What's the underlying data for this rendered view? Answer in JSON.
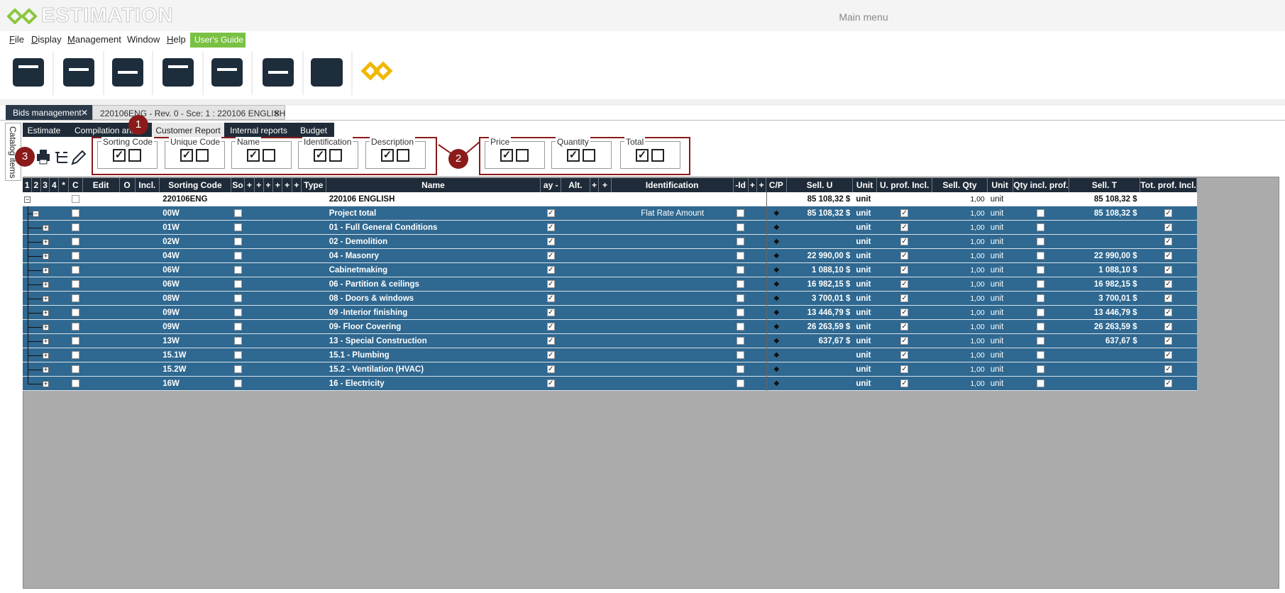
{
  "header": {
    "logo": "ESTIMATION",
    "title": "Main menu"
  },
  "menu": [
    "File",
    "Display",
    "Management",
    "Window",
    "Help",
    "User's Guide"
  ],
  "tabs": [
    "Bids management",
    "220106ENG - Rev. 0 - Sce: 1 : 220106 ENGLISH"
  ],
  "side_tab": "Catalog items",
  "report_tabs": [
    "Estimate",
    "Compilation anal",
    "Customer Report",
    "Internal reports",
    "Budget"
  ],
  "callouts": [
    "1",
    "2",
    "3"
  ],
  "option_groups": [
    "Sorting Code",
    "Unique Code",
    "Name",
    "Identification",
    "Description",
    "Price",
    "Quantity",
    "Total"
  ],
  "table": {
    "columns": [
      "1",
      "2",
      "3",
      "4",
      "*",
      "C",
      "Edit",
      "O",
      "Incl.",
      "Sorting Code",
      "So",
      "+",
      "+",
      "+",
      "+",
      "+",
      "+",
      "Type",
      "Name",
      "ay -",
      "Alt.",
      "+",
      "+",
      "Identification",
      "-Id",
      "+",
      "+",
      "C/P",
      "Sell. U",
      "Unit",
      "U. prof. Incl.",
      "Sell. Qty",
      "Unit",
      "Qty incl. prof.",
      "Sell. T",
      "Tot. prof. Incl."
    ],
    "rows": [
      {
        "code": "220106ENG",
        "name": "220106 ENGLISH",
        "sell_u": "85 108,32 $",
        "unit": "unit",
        "sell_qty": "1,00",
        "qty_unit": "unit",
        "sell_t": "85 108,32 $"
      },
      {
        "code": "00W",
        "name": "Project total",
        "identification": "Flat Rate Amount",
        "sell_u": "85 108,32 $",
        "unit": "unit",
        "sell_qty": "1,00",
        "qty_unit": "unit",
        "sell_t": "85 108,32 $"
      },
      {
        "code": "01W",
        "name": "01 - Full General Conditions",
        "unit": "unit",
        "sell_qty": "1,00",
        "qty_unit": "unit"
      },
      {
        "code": "02W",
        "name": "02 - Demolition",
        "unit": "unit",
        "sell_qty": "1,00",
        "qty_unit": "unit"
      },
      {
        "code": "04W",
        "name": "04 - Masonry",
        "sell_u": "22 990,00 $",
        "unit": "unit",
        "sell_qty": "1,00",
        "qty_unit": "unit",
        "sell_t": "22 990,00 $"
      },
      {
        "code": "06W",
        "name": "Cabinetmaking",
        "sell_u": "1 088,10 $",
        "unit": "unit",
        "sell_qty": "1,00",
        "qty_unit": "unit",
        "sell_t": "1 088,10 $"
      },
      {
        "code": "06W",
        "name": "06 - Partition & ceilings",
        "sell_u": "16 982,15 $",
        "unit": "unit",
        "sell_qty": "1,00",
        "qty_unit": "unit",
        "sell_t": "16 982,15 $"
      },
      {
        "code": "08W",
        "name": "08 - Doors & windows",
        "sell_u": "3 700,01 $",
        "unit": "unit",
        "sell_qty": "1,00",
        "qty_unit": "unit",
        "sell_t": "3 700,01 $"
      },
      {
        "code": "09W",
        "name": "09 -Interior finishing",
        "sell_u": "13 446,79 $",
        "unit": "unit",
        "sell_qty": "1,00",
        "qty_unit": "unit",
        "sell_t": "13 446,79 $"
      },
      {
        "code": "09W",
        "name": "09- Floor Covering",
        "sell_u": "26 263,59 $",
        "unit": "unit",
        "sell_qty": "1,00",
        "qty_unit": "unit",
        "sell_t": "26 263,59 $"
      },
      {
        "code": "13W",
        "name": "13 - Special Construction",
        "sell_u": "637,67 $",
        "unit": "unit",
        "sell_qty": "1,00",
        "qty_unit": "unit",
        "sell_t": "637,67 $"
      },
      {
        "code": "15.1W",
        "name": "15.1 - Plumbing",
        "unit": "unit",
        "sell_qty": "1,00",
        "qty_unit": "unit"
      },
      {
        "code": "15.2W",
        "name": "15.2 - Ventilation (HVAC)",
        "unit": "unit",
        "sell_qty": "1,00",
        "qty_unit": "unit"
      },
      {
        "code": "16W",
        "name": "16 - Electricity",
        "unit": "unit",
        "sell_qty": "1,00",
        "qty_unit": "unit"
      }
    ]
  }
}
